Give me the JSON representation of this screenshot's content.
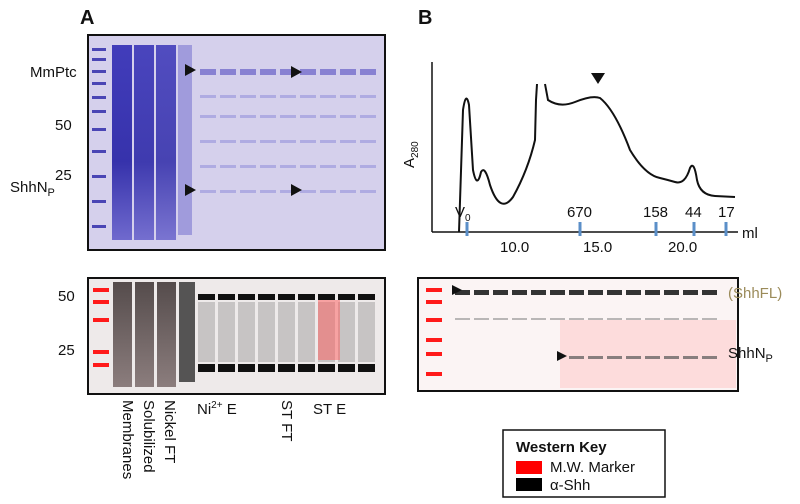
{
  "panel_a": {
    "label": "A",
    "top_gel": {
      "labels": [
        {
          "text": "MmPtc"
        },
        {
          "text": "50"
        },
        {
          "text": "25"
        },
        {
          "text": "ShhN",
          "sub": "P"
        }
      ]
    },
    "bottom_gel": {
      "labels": [
        "50",
        "25"
      ]
    },
    "lanes": {
      "membranes": "Membranes",
      "solubilized": "Solubilized",
      "nickel_ft": "Nickel FT",
      "ni_e": {
        "text": "Ni",
        "sup": "2+",
        "rest": " E"
      },
      "st_ft": "ST FT",
      "st_e": "ST E"
    }
  },
  "panel_b": {
    "label": "B",
    "chromatogram": {
      "y_label": {
        "text": "A",
        "sub": "280"
      },
      "x_ticks": [
        "10.0",
        "15.0",
        "20.0"
      ],
      "x_unit": "ml",
      "markers": [
        {
          "text": "V",
          "sub": "0"
        },
        {
          "text": "670"
        },
        {
          "text": "158"
        },
        {
          "text": "44"
        },
        {
          "text": "17"
        }
      ]
    },
    "bottom_gel": {
      "labels": [
        "(ShhFL)",
        {
          "text": "ShhN",
          "sub": "P"
        }
      ]
    }
  },
  "western_key": {
    "title": "Western Key",
    "items": [
      "M.W. Marker",
      "α-Shh"
    ]
  }
}
